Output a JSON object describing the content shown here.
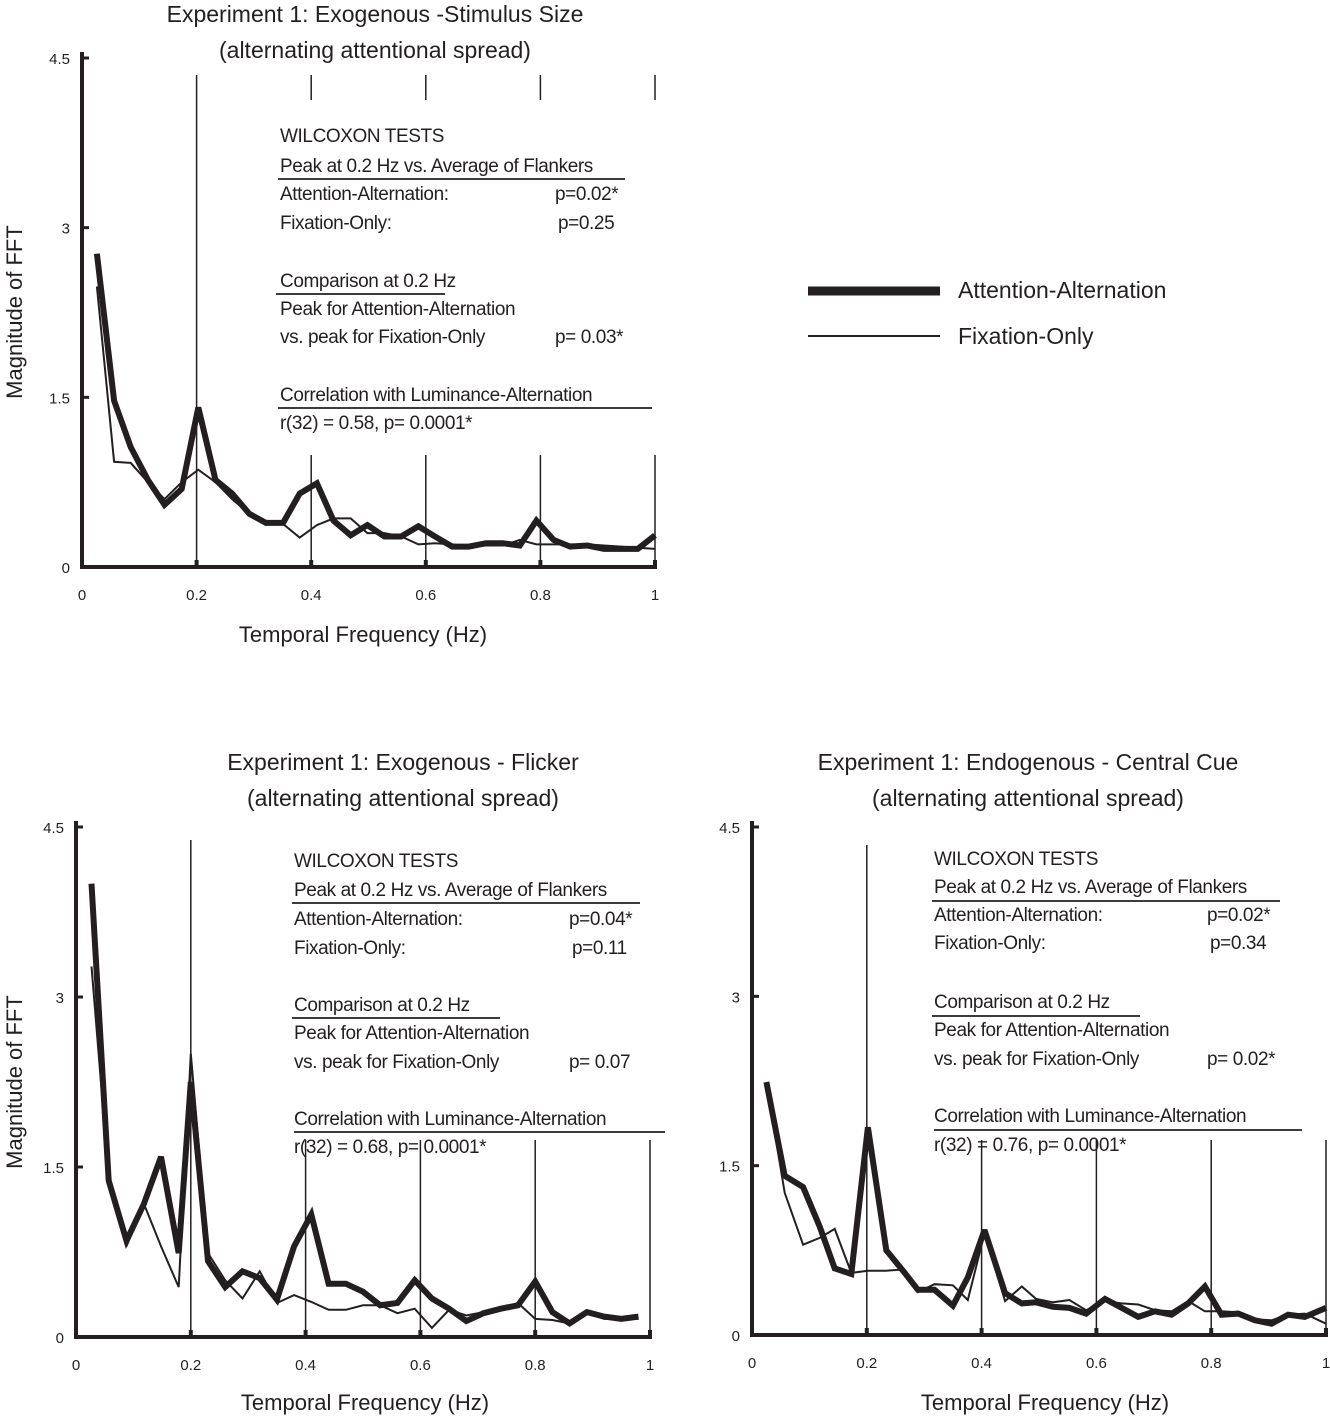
{
  "colors": {
    "ink": "#231f20",
    "background": "#ffffff"
  },
  "legend": {
    "items": [
      {
        "label": "Attention-Alternation",
        "style": "thick"
      },
      {
        "label": "Fixation-Only",
        "style": "thin"
      }
    ]
  },
  "chart_data": [
    {
      "type": "line",
      "title": [
        "Experiment 1: Exogenous -Stimulus Size",
        "(alternating attentional spread)"
      ],
      "xlabel": "Temporal Frequency (Hz)",
      "ylabel": "Magnitude of  FFT",
      "xlim": [
        0,
        1
      ],
      "ylim": [
        0,
        4.5
      ],
      "xticks": [
        "0",
        "0.2",
        "0.4",
        "0.6",
        "0.8",
        "1"
      ],
      "yticks": [
        "0",
        "1.5",
        "3",
        "4.5"
      ],
      "reference_lines_x": [
        0.2,
        0.4,
        0.6,
        0.8,
        1.0
      ],
      "x": [
        0.026,
        0.056,
        0.085,
        0.115,
        0.144,
        0.174,
        0.203,
        0.233,
        0.262,
        0.292,
        0.321,
        0.351,
        0.38,
        0.41,
        0.439,
        0.469,
        0.498,
        0.528,
        0.557,
        0.587,
        0.616,
        0.646,
        0.675,
        0.705,
        0.734,
        0.764,
        0.793,
        0.823,
        0.852,
        0.882,
        0.911,
        0.941,
        0.97,
        1.0
      ],
      "series": [
        {
          "name": "Attention-Alternation",
          "values": [
            2.77,
            1.47,
            1.06,
            0.77,
            0.55,
            0.69,
            1.41,
            0.77,
            0.65,
            0.47,
            0.39,
            0.39,
            0.65,
            0.74,
            0.41,
            0.28,
            0.37,
            0.27,
            0.27,
            0.36,
            0.27,
            0.18,
            0.18,
            0.21,
            0.21,
            0.19,
            0.41,
            0.24,
            0.18,
            0.19,
            0.16,
            0.16,
            0.16,
            0.28
          ]
        },
        {
          "name": "Fixation-Only",
          "values": [
            2.48,
            0.93,
            0.92,
            0.75,
            0.6,
            0.75,
            0.86,
            0.75,
            0.6,
            0.47,
            0.39,
            0.38,
            0.26,
            0.37,
            0.43,
            0.43,
            0.3,
            0.3,
            0.27,
            0.2,
            0.21,
            0.2,
            0.18,
            0.19,
            0.19,
            0.24,
            0.2,
            0.2,
            0.2,
            0.2,
            0.19,
            0.18,
            0.17,
            0.16
          ]
        }
      ],
      "stats": {
        "heading": "WILCOXON TESTS",
        "peak_heading": "Peak at 0.2 Hz vs. Average of Flankers",
        "att_label": "Attention-Alternation:",
        "att_p": "p=0.02*",
        "fix_label": "Fixation-Only:",
        "fix_p": "p=0.25",
        "comp_heading": "Comparison at 0.2 Hz",
        "comp_line1": "Peak for Attention-Alternation",
        "comp_line2": "vs. peak for Fixation-Only",
        "comp_p": "p= 0.03*",
        "corr_heading": "Correlation with Luminance-Alternation",
        "corr_value": "r(32) = 0.58,   p= 0.0001*"
      }
    },
    {
      "type": "line",
      "title": [
        "Experiment 1: Exogenous - Flicker",
        "(alternating attentional spread)"
      ],
      "xlabel": "Temporal Frequency (Hz)",
      "ylabel": "Magnitude of  FFT",
      "xlim": [
        0,
        1
      ],
      "ylim": [
        0,
        4.5
      ],
      "xticks": [
        "0",
        "0.2",
        "0.4",
        "0.6",
        "0.8",
        "1"
      ],
      "yticks": [
        "0",
        "1.5",
        "3",
        "4.5"
      ],
      "reference_lines_x": [
        0.2,
        0.4,
        0.6,
        0.8,
        1.0
      ],
      "x": [
        0.027,
        0.057,
        0.088,
        0.118,
        0.148,
        0.179,
        0.2,
        0.23,
        0.26,
        0.29,
        0.32,
        0.35,
        0.38,
        0.41,
        0.44,
        0.47,
        0.5,
        0.53,
        0.56,
        0.59,
        0.62,
        0.65,
        0.68,
        0.71,
        0.74,
        0.77,
        0.8,
        0.83,
        0.86,
        0.89,
        0.92,
        0.95,
        0.98
      ],
      "series": [
        {
          "name": "Attention-Alternation",
          "values": [
            4.0,
            1.38,
            0.85,
            1.17,
            1.59,
            0.74,
            2.25,
            0.67,
            0.44,
            0.58,
            0.52,
            0.33,
            0.8,
            1.08,
            0.47,
            0.47,
            0.4,
            0.28,
            0.3,
            0.5,
            0.34,
            0.25,
            0.14,
            0.21,
            0.25,
            0.28,
            0.49,
            0.22,
            0.12,
            0.22,
            0.18,
            0.16,
            0.18
          ]
        },
        {
          "name": "Fixation-Only",
          "values": [
            3.27,
            1.41,
            0.8,
            1.18,
            0.8,
            0.44,
            2.5,
            0.74,
            0.5,
            0.34,
            0.58,
            0.3,
            0.37,
            0.31,
            0.24,
            0.24,
            0.28,
            0.28,
            0.21,
            0.25,
            0.08,
            0.24,
            0.19,
            0.22,
            0.24,
            0.3,
            0.16,
            0.15,
            0.12,
            0.21,
            0.16,
            0.16,
            0.16
          ]
        }
      ],
      "stats": {
        "heading": "WILCOXON TESTS",
        "peak_heading": "Peak at 0.2 Hz vs. Average of Flankers",
        "att_label": "Attention-Alternation:",
        "att_p": "p=0.04*",
        "fix_label": "Fixation-Only:",
        "fix_p": "p=0.11",
        "comp_heading": "Comparison at 0.2 Hz",
        "comp_line1": "Peak for Attention-Alternation",
        "comp_line2": "vs. peak for Fixation-Only",
        "comp_p": "p= 0.07",
        "corr_heading": "Correlation with Luminance-Alternation",
        "corr_value": "r(32) = 0.68,   p= 0.0001*"
      }
    },
    {
      "type": "line",
      "title": [
        "Experiment 1: Endogenous - Central Cue",
        "(alternating attentional spread)"
      ],
      "xlabel": "Temporal Frequency (Hz)",
      "ylabel": "",
      "xlim": [
        0,
        1
      ],
      "ylim": [
        0,
        4.5
      ],
      "xticks": [
        "0",
        "0.2",
        "0.4",
        "0.6",
        "0.8",
        "1"
      ],
      "yticks": [
        "0",
        "1.5",
        "3",
        "4.5"
      ],
      "reference_lines_x": [
        0.2,
        0.4,
        0.6,
        0.8,
        1.0
      ],
      "x": [
        0.025,
        0.057,
        0.089,
        0.118,
        0.144,
        0.173,
        0.202,
        0.234,
        0.263,
        0.289,
        0.318,
        0.35,
        0.376,
        0.405,
        0.441,
        0.47,
        0.495,
        0.524,
        0.553,
        0.582,
        0.615,
        0.644,
        0.673,
        0.702,
        0.731,
        0.76,
        0.789,
        0.818,
        0.847,
        0.876,
        0.905,
        0.934,
        0.963,
        1.0
      ],
      "series": [
        {
          "name": "Attention-Alternation",
          "values": [
            2.24,
            1.41,
            1.31,
            0.96,
            0.59,
            0.54,
            1.84,
            0.75,
            0.57,
            0.4,
            0.4,
            0.26,
            0.51,
            0.93,
            0.37,
            0.28,
            0.29,
            0.25,
            0.24,
            0.19,
            0.32,
            0.24,
            0.16,
            0.21,
            0.18,
            0.28,
            0.43,
            0.18,
            0.19,
            0.13,
            0.1,
            0.18,
            0.16,
            0.24
          ]
        },
        {
          "name": "Fixation-Only",
          "values": [
            2.24,
            1.26,
            0.8,
            0.86,
            0.94,
            0.55,
            0.57,
            0.57,
            0.58,
            0.38,
            0.45,
            0.44,
            0.31,
            0.9,
            0.3,
            0.43,
            0.32,
            0.29,
            0.31,
            0.22,
            0.3,
            0.28,
            0.27,
            0.22,
            0.21,
            0.3,
            0.21,
            0.21,
            0.2,
            0.14,
            0.13,
            0.18,
            0.19,
            0.1
          ]
        }
      ],
      "stats": {
        "heading": "WILCOXON TESTS",
        "peak_heading": "Peak at 0.2 Hz vs. Average of Flankers",
        "att_label": "Attention-Alternation:",
        "att_p": "p=0.02*",
        "fix_label": "Fixation-Only:",
        "fix_p": "p=0.34",
        "comp_heading": "Comparison at 0.2 Hz",
        "comp_line1": "Peak for Attention-Alternation",
        "comp_line2": "vs. peak for Fixation-Only",
        "comp_p": "p= 0.02*",
        "corr_heading": "Correlation with Luminance-Alternation",
        "corr_value": "r(32) = 0.76,   p= 0.0001*"
      }
    }
  ]
}
